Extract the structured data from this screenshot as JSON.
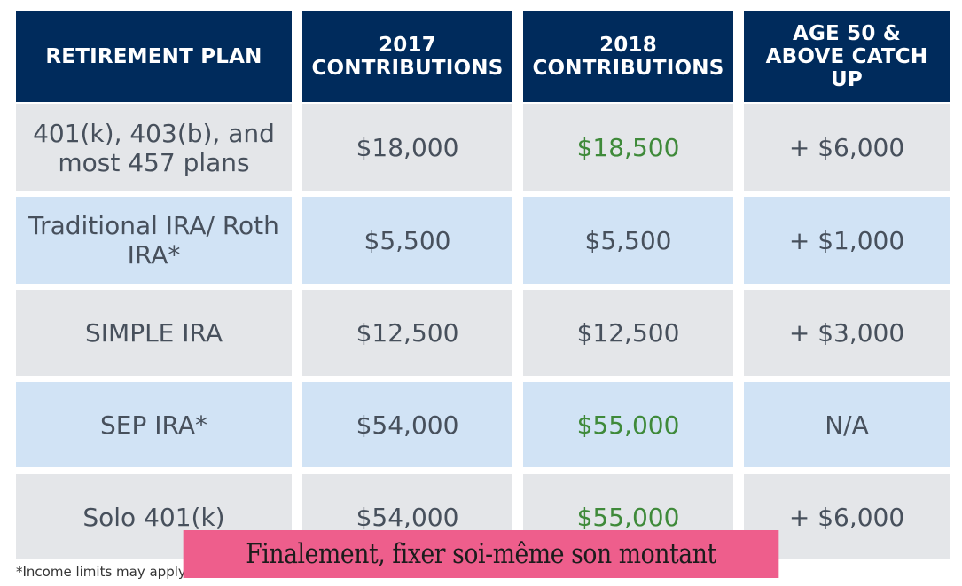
{
  "chart_data": {
    "type": "table",
    "columns": [
      "RETIREMENT PLAN",
      "2017 CONTRIBUTIONS",
      "2018 CONTRIBUTIONS",
      "AGE 50 & ABOVE CATCH UP"
    ],
    "rows": [
      {
        "plan": "401(k), 403(b), and most 457 plans",
        "y2017": "$18,000",
        "y2018": "$18,500",
        "catchup": "+ $6,000",
        "y2018_changed": true
      },
      {
        "plan": "Traditional IRA/ Roth IRA*",
        "y2017": "$5,500",
        "y2018": "$5,500",
        "catchup": "+ $1,000",
        "y2018_changed": false
      },
      {
        "plan": "SIMPLE IRA",
        "y2017": "$12,500",
        "y2018": "$12,500",
        "catchup": "+ $3,000",
        "y2018_changed": false
      },
      {
        "plan": "SEP IRA*",
        "y2017": "$54,000",
        "y2018": "$55,000",
        "catchup": "N/A",
        "y2018_changed": true
      },
      {
        "plan": "Solo 401(k)",
        "y2017": "$54,000",
        "y2018": "$55,000",
        "catchup": "+ $6,000",
        "y2018_changed": true
      }
    ]
  },
  "headers": {
    "plan": "RETIREMENT PLAN",
    "c2017": "2017 CONTRIBUTIONS",
    "c2018": "2018 CONTRIBUTIONS",
    "catchup": "AGE 50 & ABOVE CATCH UP"
  },
  "footnote": "*Income limits may apply",
  "banner": "Finalement, fixer soi-même son montant",
  "colors": {
    "header_bg": "#002b5c",
    "row_gray": "#e4e6e9",
    "row_blue": "#d1e3f5",
    "increase_green": "#3f8a3a",
    "banner_pink": "#ee5e8c"
  }
}
